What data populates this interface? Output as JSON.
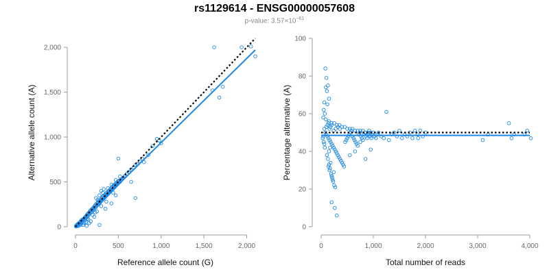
{
  "header": {
    "title": "rs1129614 - ENSG00000057608",
    "subtitle_prefix": "p-value: 3.57×10",
    "subtitle_exponent": "−61"
  },
  "colors": {
    "points": "#1e88e5",
    "fit_line": "#1e88e5",
    "reference_line": "#000000",
    "axis": "#999999",
    "tick_text": "#666666"
  },
  "chart_data": [
    {
      "type": "scatter",
      "title": "",
      "xlabel": "Reference allele count (G)",
      "ylabel": "Alternative allele count (A)",
      "xlim": [
        0,
        2100
      ],
      "ylim": [
        0,
        2100
      ],
      "x_ticks": [
        0,
        500,
        1000,
        1500,
        2000
      ],
      "y_ticks": [
        0,
        500,
        1000,
        1500,
        2000
      ],
      "x_tick_labels": [
        "0",
        "500",
        "1,000",
        "1,500",
        "2,000"
      ],
      "y_tick_labels": [
        "0",
        "500",
        "1,000",
        "1,500",
        "2,000"
      ],
      "reference_line": {
        "style": "dotted",
        "x": [
          0,
          2100
        ],
        "y": [
          0,
          2100
        ]
      },
      "fit_line": {
        "x": [
          0,
          2100
        ],
        "y": [
          0,
          1970
        ]
      },
      "points": [
        [
          5,
          3
        ],
        [
          8,
          12
        ],
        [
          12,
          6
        ],
        [
          15,
          18
        ],
        [
          18,
          10
        ],
        [
          20,
          25
        ],
        [
          25,
          15
        ],
        [
          28,
          30
        ],
        [
          30,
          20
        ],
        [
          35,
          8
        ],
        [
          38,
          40
        ],
        [
          40,
          28
        ],
        [
          45,
          35
        ],
        [
          50,
          45
        ],
        [
          55,
          30
        ],
        [
          58,
          60
        ],
        [
          60,
          48
        ],
        [
          65,
          55
        ],
        [
          70,
          40
        ],
        [
          72,
          75
        ],
        [
          75,
          62
        ],
        [
          80,
          70
        ],
        [
          85,
          55
        ],
        [
          90,
          85
        ],
        [
          95,
          78
        ],
        [
          100,
          90
        ],
        [
          105,
          70
        ],
        [
          110,
          105
        ],
        [
          115,
          95
        ],
        [
          120,
          115
        ],
        [
          125,
          100
        ],
        [
          130,
          125
        ],
        [
          135,
          110
        ],
        [
          140,
          140
        ],
        [
          145,
          120
        ],
        [
          150,
          150
        ],
        [
          155,
          135
        ],
        [
          160,
          160
        ],
        [
          165,
          145
        ],
        [
          170,
          175
        ],
        [
          175,
          155
        ],
        [
          180,
          185
        ],
        [
          185,
          165
        ],
        [
          190,
          195
        ],
        [
          195,
          180
        ],
        [
          200,
          205
        ],
        [
          205,
          185
        ],
        [
          210,
          215
        ],
        [
          215,
          195
        ],
        [
          220,
          225
        ],
        [
          225,
          210
        ],
        [
          230,
          240
        ],
        [
          235,
          215
        ],
        [
          240,
          250
        ],
        [
          245,
          230
        ],
        [
          250,
          260
        ],
        [
          255,
          240
        ],
        [
          260,
          270
        ],
        [
          265,
          250
        ],
        [
          270,
          285
        ],
        [
          275,
          260
        ],
        [
          280,
          290
        ],
        [
          285,
          265
        ],
        [
          290,
          300
        ],
        [
          295,
          280
        ],
        [
          300,
          310
        ],
        [
          305,
          290
        ],
        [
          310,
          320
        ],
        [
          315,
          300
        ],
        [
          320,
          335
        ],
        [
          325,
          310
        ],
        [
          330,
          345
        ],
        [
          335,
          320
        ],
        [
          340,
          350
        ],
        [
          345,
          330
        ],
        [
          350,
          360
        ],
        [
          355,
          340
        ],
        [
          360,
          375
        ],
        [
          365,
          350
        ],
        [
          370,
          380
        ],
        [
          375,
          360
        ],
        [
          380,
          395
        ],
        [
          385,
          370
        ],
        [
          390,
          400
        ],
        [
          395,
          380
        ],
        [
          400,
          410
        ],
        [
          405,
          390
        ],
        [
          410,
          420
        ],
        [
          415,
          400
        ],
        [
          420,
          435
        ],
        [
          425,
          410
        ],
        [
          430,
          440
        ],
        [
          435,
          420
        ],
        [
          440,
          455
        ],
        [
          445,
          430
        ],
        [
          450,
          465
        ],
        [
          455,
          440
        ],
        [
          460,
          470
        ],
        [
          465,
          450
        ],
        [
          470,
          480
        ],
        [
          475,
          460
        ],
        [
          480,
          490
        ],
        [
          485,
          470
        ],
        [
          490,
          500
        ],
        [
          495,
          480
        ],
        [
          500,
          505
        ],
        [
          505,
          490
        ],
        [
          510,
          515
        ],
        [
          520,
          500
        ],
        [
          530,
          520
        ],
        [
          540,
          525
        ],
        [
          550,
          540
        ],
        [
          560,
          545
        ],
        [
          570,
          560
        ],
        [
          580,
          565
        ],
        [
          600,
          590
        ],
        [
          620,
          610
        ],
        [
          650,
          640
        ],
        [
          680,
          660
        ],
        [
          700,
          690
        ],
        [
          720,
          700
        ],
        [
          750,
          730
        ],
        [
          780,
          760
        ],
        [
          60,
          20
        ],
        [
          100,
          40
        ],
        [
          150,
          80
        ],
        [
          200,
          130
        ],
        [
          250,
          170
        ],
        [
          300,
          230
        ],
        [
          180,
          60
        ],
        [
          220,
          110
        ],
        [
          130,
          10
        ],
        [
          280,
          20
        ],
        [
          350,
          200
        ],
        [
          90,
          20
        ],
        [
          160,
          40
        ],
        [
          140,
          90
        ],
        [
          230,
          160
        ],
        [
          260,
          300
        ],
        [
          320,
          380
        ],
        [
          380,
          430
        ],
        [
          420,
          470
        ],
        [
          470,
          520
        ],
        [
          520,
          560
        ],
        [
          440,
          380
        ],
        [
          470,
          350
        ],
        [
          420,
          260
        ],
        [
          360,
          280
        ],
        [
          300,
          400
        ],
        [
          330,
          420
        ],
        [
          280,
          350
        ],
        [
          240,
          320
        ],
        [
          500,
          760
        ],
        [
          700,
          320
        ],
        [
          650,
          500
        ],
        [
          800,
          720
        ],
        [
          850,
          800
        ],
        [
          900,
          900
        ],
        [
          950,
          980
        ],
        [
          980,
          960
        ],
        [
          1000,
          930
        ],
        [
          1620,
          2000
        ],
        [
          1600,
          1520
        ],
        [
          1680,
          1440
        ],
        [
          1720,
          1560
        ],
        [
          1940,
          2000
        ],
        [
          2050,
          2010
        ],
        [
          2100,
          1900
        ],
        [
          120,
          50
        ]
      ]
    },
    {
      "type": "scatter",
      "title": "",
      "xlabel": "Total number of reads",
      "ylabel": "Percentage alternative (A)",
      "xlim": [
        0,
        4000
      ],
      "ylim": [
        0,
        100
      ],
      "x_ticks": [
        0,
        1000,
        2000,
        3000,
        4000
      ],
      "y_ticks": [
        0,
        20,
        40,
        60,
        80,
        100
      ],
      "x_tick_labels": [
        "0",
        "1,000",
        "2,000",
        "3,000",
        "4,000"
      ],
      "y_tick_labels": [
        "0",
        "20",
        "40",
        "60",
        "80",
        "100"
      ],
      "reference_line": {
        "style": "dotted",
        "x": [
          0,
          4000
        ],
        "y": [
          50,
          50
        ]
      },
      "fit_line": {
        "x": [
          0,
          4000
        ],
        "y": [
          48.5,
          48.5
        ]
      },
      "points": [
        [
          80,
          84
        ],
        [
          100,
          79
        ],
        [
          130,
          75
        ],
        [
          90,
          74
        ],
        [
          110,
          72
        ],
        [
          150,
          68
        ],
        [
          120,
          65
        ],
        [
          60,
          66
        ],
        [
          50,
          62
        ],
        [
          70,
          60
        ],
        [
          40,
          58
        ],
        [
          90,
          57
        ],
        [
          150,
          56
        ],
        [
          200,
          55
        ],
        [
          250,
          55
        ],
        [
          300,
          54
        ],
        [
          350,
          54
        ],
        [
          400,
          53
        ],
        [
          450,
          53
        ],
        [
          500,
          52
        ],
        [
          550,
          52
        ],
        [
          600,
          52
        ],
        [
          650,
          51
        ],
        [
          700,
          51
        ],
        [
          750,
          51
        ],
        [
          800,
          51
        ],
        [
          850,
          50
        ],
        [
          900,
          50
        ],
        [
          950,
          50
        ],
        [
          1000,
          50
        ],
        [
          60,
          52
        ],
        [
          80,
          50
        ],
        [
          100,
          49
        ],
        [
          120,
          48
        ],
        [
          140,
          47
        ],
        [
          160,
          46
        ],
        [
          180,
          45
        ],
        [
          200,
          44
        ],
        [
          220,
          43
        ],
        [
          240,
          42
        ],
        [
          260,
          41
        ],
        [
          280,
          40
        ],
        [
          300,
          39
        ],
        [
          320,
          38
        ],
        [
          340,
          37
        ],
        [
          360,
          36
        ],
        [
          380,
          35
        ],
        [
          400,
          34
        ],
        [
          420,
          33
        ],
        [
          440,
          32
        ],
        [
          460,
          45
        ],
        [
          480,
          46
        ],
        [
          500,
          47
        ],
        [
          520,
          48
        ],
        [
          540,
          49
        ],
        [
          560,
          50
        ],
        [
          580,
          51
        ],
        [
          600,
          48
        ],
        [
          620,
          47
        ],
        [
          640,
          46
        ],
        [
          660,
          45
        ],
        [
          680,
          44
        ],
        [
          700,
          43
        ],
        [
          720,
          49
        ],
        [
          740,
          50
        ],
        [
          760,
          48
        ],
        [
          780,
          47
        ],
        [
          800,
          46
        ],
        [
          820,
          49
        ],
        [
          840,
          50
        ],
        [
          860,
          48
        ],
        [
          880,
          47
        ],
        [
          900,
          49
        ],
        [
          920,
          51
        ],
        [
          940,
          48
        ],
        [
          960,
          47
        ],
        [
          980,
          49
        ],
        [
          1020,
          48
        ],
        [
          1050,
          47
        ],
        [
          1080,
          49
        ],
        [
          1100,
          50
        ],
        [
          1150,
          48
        ],
        [
          1200,
          47
        ],
        [
          1250,
          61
        ],
        [
          1300,
          46
        ],
        [
          1350,
          49
        ],
        [
          1400,
          50
        ],
        [
          1450,
          48
        ],
        [
          1500,
          51
        ],
        [
          1550,
          47
        ],
        [
          1600,
          49
        ],
        [
          1650,
          48
        ],
        [
          1700,
          50
        ],
        [
          1750,
          47
        ],
        [
          1800,
          51
        ],
        [
          1850,
          49
        ],
        [
          1900,
          51
        ],
        [
          1950,
          48
        ],
        [
          2000,
          50
        ],
        [
          1860,
          47
        ],
        [
          3100,
          46
        ],
        [
          3200,
          49
        ],
        [
          3600,
          55
        ],
        [
          3650,
          47
        ],
        [
          3700,
          49
        ],
        [
          3950,
          51
        ],
        [
          4020,
          47
        ],
        [
          3900,
          49
        ],
        [
          110,
          38
        ],
        [
          130,
          36
        ],
        [
          150,
          33
        ],
        [
          170,
          31
        ],
        [
          190,
          28
        ],
        [
          210,
          26
        ],
        [
          230,
          24
        ],
        [
          250,
          22
        ],
        [
          270,
          21
        ],
        [
          200,
          27
        ],
        [
          220,
          25
        ],
        [
          240,
          29
        ],
        [
          160,
          30
        ],
        [
          140,
          32
        ],
        [
          180,
          34
        ],
        [
          260,
          10
        ],
        [
          300,
          6
        ],
        [
          200,
          13
        ],
        [
          150,
          40
        ],
        [
          170,
          42
        ],
        [
          50,
          45
        ],
        [
          40,
          48
        ],
        [
          60,
          44
        ],
        [
          70,
          42
        ],
        [
          30,
          47
        ],
        [
          550,
          38
        ],
        [
          650,
          40
        ],
        [
          750,
          45
        ],
        [
          850,
          36
        ],
        [
          950,
          41
        ],
        [
          100,
          53
        ],
        [
          120,
          54
        ],
        [
          140,
          55
        ],
        [
          160,
          52
        ],
        [
          180,
          53
        ],
        [
          200,
          54
        ],
        [
          240,
          51
        ],
        [
          280,
          52
        ],
        [
          320,
          53
        ],
        [
          360,
          52
        ]
      ]
    }
  ]
}
